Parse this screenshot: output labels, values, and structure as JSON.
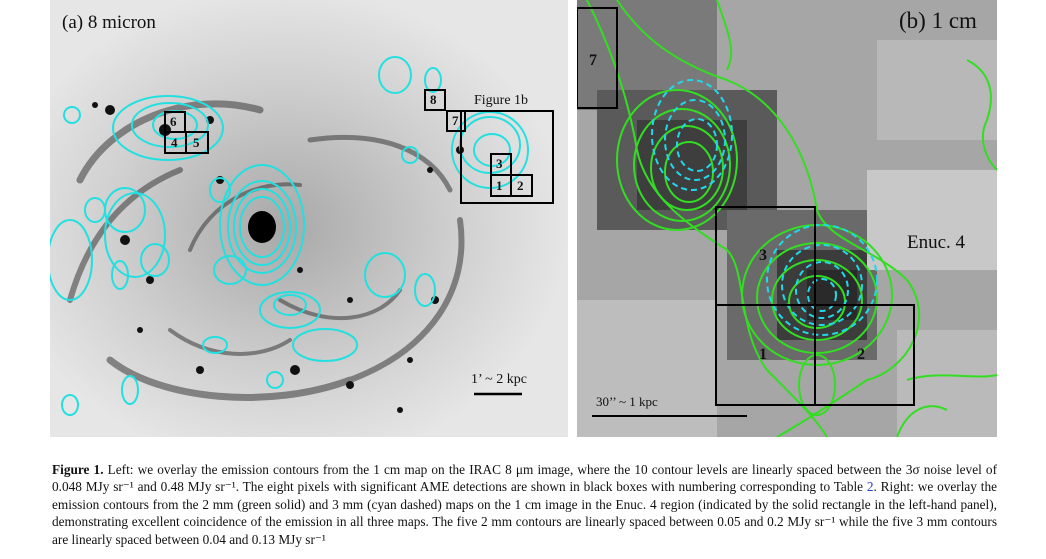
{
  "left_panel": {
    "label": "(a) 8 micron",
    "region_label": "Figure 1b",
    "scale_label": "1’ ~ 2 kpc",
    "boxes": [
      "8",
      "7",
      "3",
      "1",
      "2",
      "6",
      "4",
      "5"
    ]
  },
  "right_panel": {
    "label": "(b) 1 cm",
    "region_label": "Enuc. 4",
    "scale_label": "30’’ ~ 1 kpc",
    "boxes": [
      "7",
      "3",
      "1",
      "2"
    ]
  },
  "caption": {
    "figure_label": "Figure 1.",
    "part1": "Left: we overlay the emission contours from the 1 cm map on the IRAC 8 μm image, where the 10 contour levels are linearly spaced between the 3σ noise level of 0.048 MJy sr⁻¹ and 0.48 MJy sr⁻¹. The eight pixels with significant AME detections are shown in black boxes with numbering corresponding to Table",
    "table_ref": "2",
    "part2": ". Right: we overlay the emission contours from the 2 mm (green solid) and 3 mm (cyan dashed) maps on the 1 cm image in the Enuc. 4 region (indicated by the solid rectangle in the left-hand panel), demonstrating excellent coincidence of the emission in all three maps. The five 2 mm contours are linearly spaced between 0.05 and 0.2 MJy sr⁻¹ while the five 3 mm contours are linearly spaced between 0.04 and 0.13 MJy sr⁻¹"
  },
  "colors": {
    "contour_cyan": "#22e0e0",
    "contour_green": "#33dd22",
    "box_black": "#000000",
    "link_blue": "#2340c8"
  }
}
